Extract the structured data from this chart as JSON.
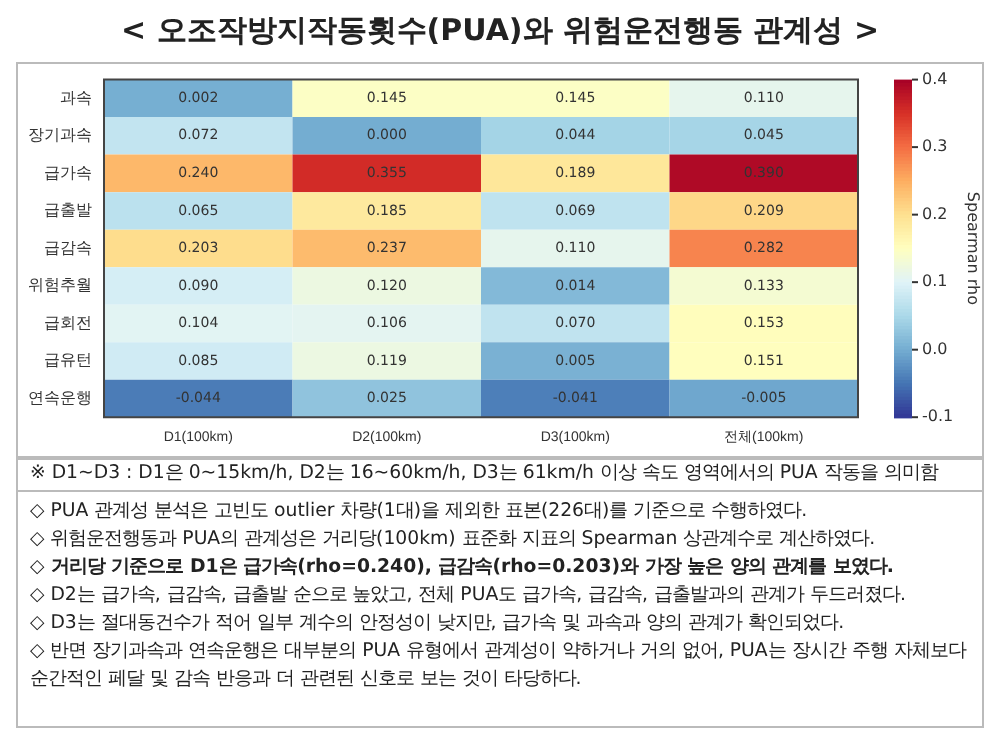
{
  "chart_data": {
    "type": "heatmap",
    "title": "< 오조작방지작동횟수(PUA)와 위험운전행동 관계성 >",
    "categories": [
      "D1(100km)",
      "D2(100km)",
      "D3(100km)",
      "전체(100km)"
    ],
    "y_categories": [
      "과속",
      "장기과속",
      "급가속",
      "급출발",
      "급감속",
      "위험추월",
      "급회전",
      "급유턴",
      "연속운행"
    ],
    "cells": [
      [
        0.002,
        0.145,
        0.145,
        0.11
      ],
      [
        0.072,
        0.0,
        0.044,
        0.045
      ],
      [
        0.24,
        0.355,
        0.189,
        0.39
      ],
      [
        0.065,
        0.185,
        0.069,
        0.209
      ],
      [
        0.203,
        0.237,
        0.11,
        0.282
      ],
      [
        0.09,
        0.12,
        0.014,
        0.133
      ],
      [
        0.104,
        0.106,
        0.07,
        0.153
      ],
      [
        0.085,
        0.119,
        0.005,
        0.151
      ],
      [
        -0.044,
        0.025,
        -0.041,
        -0.005
      ]
    ],
    "cell_labels": [
      [
        "0.002",
        "0.145",
        "0.145",
        "0.110"
      ],
      [
        "0.072",
        "0.000",
        "0.044",
        "0.045"
      ],
      [
        "0.240",
        "0.355",
        "0.189",
        "0.390"
      ],
      [
        "0.065",
        "0.185",
        "0.069",
        "0.209"
      ],
      [
        "0.203",
        "0.237",
        "0.110",
        "0.282"
      ],
      [
        "0.090",
        "0.120",
        "0.014",
        "0.133"
      ],
      [
        "0.104",
        "0.106",
        "0.070",
        "0.153"
      ],
      [
        "0.085",
        "0.119",
        "0.005",
        "0.151"
      ],
      [
        "-0.044",
        "0.025",
        "-0.041",
        "-0.005"
      ]
    ],
    "clabel": "Spearman rho",
    "clim": [
      -0.1,
      0.4
    ],
    "cticks": [
      -0.1,
      {
        "value": 0,
        "label": "0.0"
      },
      0.1,
      0.2,
      0.3,
      0.4
    ],
    "annotations": [
      "※ D1~D3 : D1은 0~15km/h, D2는 16~60km/h, D3는 61km/h 이상 속도 영역에서의 PUA 작동을 의미함",
      "◇ PUA 관계성 분석은 고빈도 outlier 차량(1대)을 제외한 표본(226대)를 기준으로 수행하였다.",
      "◇ 위험운전행동과 PUA의 관계성은 거리당(100km) 표준화 지표의 Spearman 상관계수로 계산하였다.",
      "◇ 거리당 기준으로 D1은 급가속(rho=0.240), 급감속(rho=0.203)와 가장 높은 양의 관계를 보였다.",
      "◇ D2는 급가속, 급감속, 급출발 순으로 높았고, 전체 PUA도 급가속, 급감속, 급출발과의 관계가 두드러졌다.",
      "◇ D3는 절대동건수가 적어 일부 계수의 안정성이 낮지만, 급가속 및 과속과 양의 관계가 확인되었다.",
      "◇ 반면 장기과속과 연속운행은 대부분의 PUA 유형에서 관계성이 약하거나 거의 없어, PUA는 장시간 주행 자체보다 순간적인 페달 및 감속 반응과 더 관련된 신호로 보는 것이 타당하다."
    ]
  }
}
